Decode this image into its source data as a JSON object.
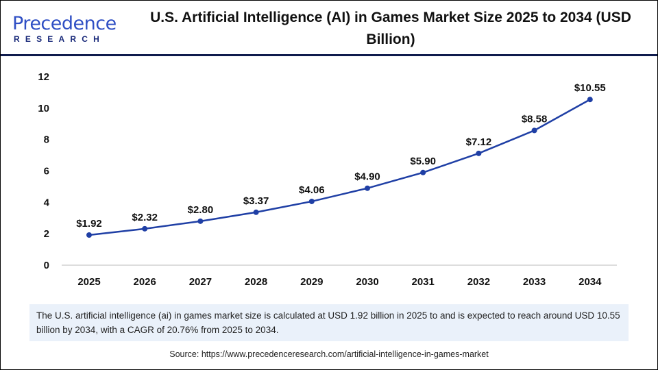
{
  "logo": {
    "text_main": "Precedence",
    "text_sub": "RESEARCH"
  },
  "colors": {
    "line": "#1f3fa5",
    "header_rule": "#0f1b4d",
    "note_bg": "#eaf1fa"
  },
  "chart_data": {
    "type": "line",
    "title": "U.S. Artificial Intelligence (AI) in Games Market Size 2025 to 2034 (USD Billion)",
    "categories": [
      "2025",
      "2026",
      "2027",
      "2028",
      "2029",
      "2030",
      "2031",
      "2032",
      "2033",
      "2034"
    ],
    "values": [
      1.92,
      2.32,
      2.8,
      3.37,
      4.06,
      4.9,
      5.9,
      7.12,
      8.58,
      10.55
    ],
    "data_labels": [
      "$1.92",
      "$2.32",
      "$2.80",
      "$3.37",
      "$4.06",
      "$4.90",
      "$5.90",
      "$7.12",
      "$8.58",
      "$10.55"
    ],
    "ylim": [
      0,
      12
    ],
    "yticks": [
      "0",
      "2",
      "4",
      "6",
      "8",
      "10",
      "12"
    ],
    "grid": false,
    "xlabel": "",
    "ylabel": ""
  },
  "note": "The U.S. artificial intelligence (ai) in games market size is calculated at USD 1.92 billion in 2025 to and is expected to reach around USD 10.55 billion by 2034, with a CAGR of 20.76% from 2025 to 2034.",
  "source": "Source: https://www.precedenceresearch.com/artificial-intelligence-in-games-market"
}
